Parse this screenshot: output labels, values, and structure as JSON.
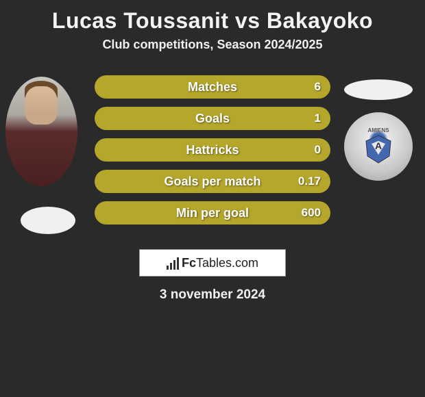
{
  "title": "Lucas Toussanit vs Bakayoko",
  "subtitle": "Club competitions, Season 2024/2025",
  "date": "3 november 2024",
  "logo": {
    "prefix": "Fc",
    "suffix": "Tables.com"
  },
  "crest_right_text": "AMIENS",
  "colors": {
    "bar_fill": "#b4a72c",
    "bar_empty": "#8a8a8a",
    "background": "#2a2a2a",
    "text": "#ffffff",
    "badge": "#f0f0f0"
  },
  "stats": [
    {
      "label": "Matches",
      "value": "6",
      "fill_pct": 100
    },
    {
      "label": "Goals",
      "value": "1",
      "fill_pct": 100
    },
    {
      "label": "Hattricks",
      "value": "0",
      "fill_pct": 100
    },
    {
      "label": "Goals per match",
      "value": "0.17",
      "fill_pct": 100
    },
    {
      "label": "Min per goal",
      "value": "600",
      "fill_pct": 100
    }
  ]
}
